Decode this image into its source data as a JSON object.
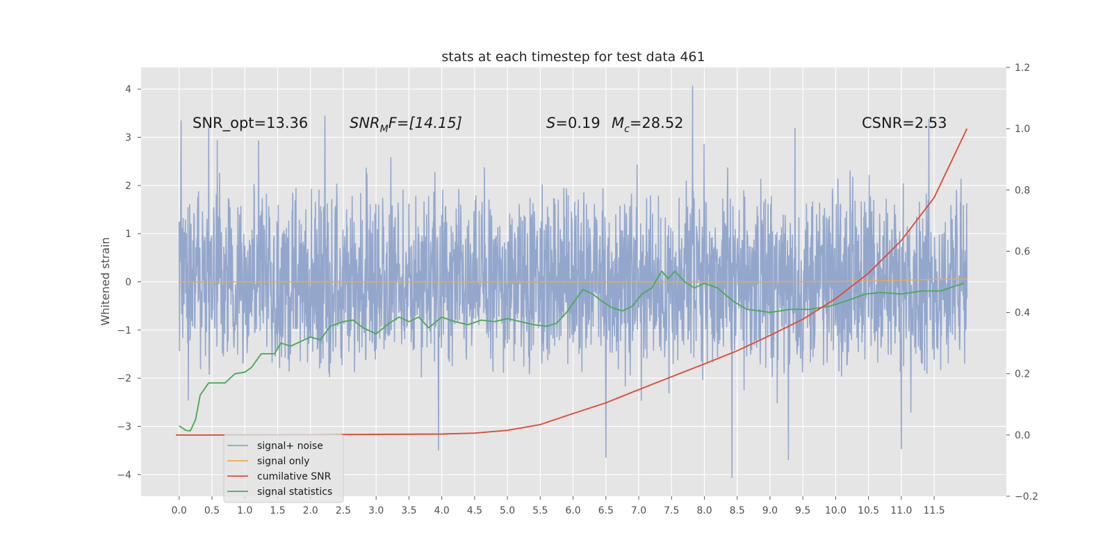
{
  "chart_data": {
    "type": "line",
    "title": "stats at each timestep for test data 461",
    "ylabel": "Whitened strain",
    "xlabel": "",
    "x_ticks": [
      "0.0",
      "0.5",
      "1.0",
      "1.5",
      "2.0",
      "2.5",
      "3.0",
      "3.5",
      "4.0",
      "4.5",
      "5.0",
      "5.5",
      "6.0",
      "6.5",
      "7.0",
      "7.5",
      "8.0",
      "8.5",
      "9.0",
      "9.5",
      "10.0",
      "10.5",
      "11.0",
      "11.5"
    ],
    "y_left_ticks": [
      "4",
      "3",
      "2",
      "1",
      "0",
      "−1",
      "−2",
      "−3",
      "−4"
    ],
    "y_right_ticks": [
      "1.2",
      "1.0",
      "0.8",
      "0.6",
      "0.4",
      "0.2",
      "0.0",
      "−0.2"
    ],
    "xlim": [
      -0.58,
      12.6
    ],
    "ylim_left": [
      -4.45,
      4.45
    ],
    "ylim_right": [
      -0.2,
      1.2
    ],
    "grid": true,
    "legend_position": "lower-left",
    "annotations": {
      "snr_opt": "SNR_opt=13.36",
      "snr_mf_main": "SNR",
      "snr_mf_sub": "M",
      "snr_mf_rest": "F=[14.15]",
      "s_main": "S",
      "s_rest": "=0.19",
      "mc_main": "M",
      "mc_sub": "c",
      "mc_rest": "=28.52",
      "csnr": "CSNR=2.53"
    },
    "series": [
      {
        "name": "signal+ noise",
        "axis": "left",
        "color": "#8ea3cb",
        "description_values": "dense noisy strain, roughly between -3.5 and 4.1, sampled 0.0 to 12.0",
        "peaks": [
          [
            0.03,
            3.35
          ],
          [
            0.45,
            3.2
          ],
          [
            2.22,
            3.45
          ],
          [
            7.82,
            4.07
          ],
          [
            11.42,
            3.38
          ],
          [
            8.42,
            -4.07
          ],
          [
            9.28,
            -3.7
          ],
          [
            6.5,
            -3.65
          ],
          [
            11.0,
            -3.47
          ],
          [
            5.98,
            1.5
          ],
          [
            5.98,
            -1.1
          ],
          [
            3.95,
            -3.5
          ]
        ]
      },
      {
        "name": "signal only",
        "axis": "left",
        "color": "#f0a94a",
        "x": [
          0.0,
          9.0,
          10.0,
          10.5,
          11.0,
          11.5,
          12.0
        ],
        "y": [
          0.0,
          0.0,
          0.01,
          0.02,
          0.03,
          0.05,
          0.06
        ]
      },
      {
        "name": "cumilative SNR",
        "axis": "right",
        "color": "#e24a33",
        "x": [
          -0.05,
          1.0,
          2.0,
          3.0,
          4.0,
          4.5,
          5.0,
          5.5,
          6.0,
          6.5,
          7.0,
          7.5,
          8.0,
          8.5,
          9.0,
          9.5,
          10.0,
          10.5,
          11.0,
          11.5,
          12.0
        ],
        "y": [
          0.0,
          0.0,
          0.001,
          0.002,
          0.003,
          0.006,
          0.015,
          0.034,
          0.07,
          0.105,
          0.148,
          0.19,
          0.232,
          0.275,
          0.325,
          0.378,
          0.445,
          0.528,
          0.635,
          0.775,
          1.0
        ]
      },
      {
        "name": "signal statistics",
        "axis": "right",
        "color": "#4caa55",
        "x": [
          0.0,
          0.1,
          0.17,
          0.25,
          0.32,
          0.45,
          0.7,
          0.85,
          1.0,
          1.1,
          1.25,
          1.45,
          1.55,
          1.7,
          2.0,
          2.15,
          2.3,
          2.5,
          2.65,
          2.8,
          3.0,
          3.2,
          3.35,
          3.5,
          3.65,
          3.8,
          4.0,
          4.2,
          4.4,
          4.6,
          4.8,
          5.0,
          5.2,
          5.4,
          5.6,
          5.75,
          5.9,
          6.05,
          6.15,
          6.3,
          6.45,
          6.6,
          6.75,
          6.9,
          7.05,
          7.2,
          7.35,
          7.45,
          7.55,
          7.7,
          7.85,
          8.0,
          8.2,
          8.45,
          8.65,
          8.85,
          9.0,
          9.3,
          9.6,
          9.9,
          10.2,
          10.45,
          10.7,
          11.0,
          11.3,
          11.6,
          11.8,
          11.95
        ],
        "y": [
          0.03,
          0.015,
          0.013,
          0.05,
          0.13,
          0.17,
          0.17,
          0.2,
          0.205,
          0.22,
          0.265,
          0.265,
          0.3,
          0.29,
          0.32,
          0.31,
          0.355,
          0.37,
          0.375,
          0.35,
          0.33,
          0.365,
          0.385,
          0.37,
          0.385,
          0.35,
          0.385,
          0.37,
          0.36,
          0.375,
          0.37,
          0.38,
          0.37,
          0.36,
          0.355,
          0.365,
          0.4,
          0.445,
          0.475,
          0.46,
          0.435,
          0.415,
          0.405,
          0.42,
          0.46,
          0.48,
          0.535,
          0.51,
          0.535,
          0.5,
          0.48,
          0.495,
          0.48,
          0.435,
          0.41,
          0.405,
          0.4,
          0.41,
          0.41,
          0.42,
          0.44,
          0.46,
          0.465,
          0.46,
          0.47,
          0.47,
          0.485,
          0.495
        ]
      }
    ]
  }
}
